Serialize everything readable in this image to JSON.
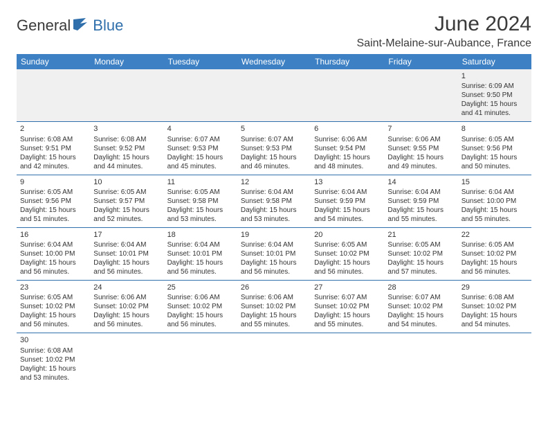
{
  "header": {
    "logo_dark": "General",
    "logo_blue": "Blue",
    "month_title": "June 2024",
    "location": "Saint-Melaine-sur-Aubance, France"
  },
  "colors": {
    "header_bg": "#3d80c3",
    "header_text": "#ffffff",
    "row_border": "#2f6fab",
    "blank_bg": "#f0f0f0",
    "logo_dark": "#3a3a3a",
    "logo_blue": "#2f6fab",
    "text": "#333333",
    "page_bg": "#ffffff"
  },
  "calendar": {
    "day_headers": [
      "Sunday",
      "Monday",
      "Tuesday",
      "Wednesday",
      "Thursday",
      "Friday",
      "Saturday"
    ],
    "weeks": [
      [
        null,
        null,
        null,
        null,
        null,
        null,
        {
          "day": "1",
          "sunrise": "Sunrise: 6:09 AM",
          "sunset": "Sunset: 9:50 PM",
          "daylight": "Daylight: 15 hours and 41 minutes."
        }
      ],
      [
        {
          "day": "2",
          "sunrise": "Sunrise: 6:08 AM",
          "sunset": "Sunset: 9:51 PM",
          "daylight": "Daylight: 15 hours and 42 minutes."
        },
        {
          "day": "3",
          "sunrise": "Sunrise: 6:08 AM",
          "sunset": "Sunset: 9:52 PM",
          "daylight": "Daylight: 15 hours and 44 minutes."
        },
        {
          "day": "4",
          "sunrise": "Sunrise: 6:07 AM",
          "sunset": "Sunset: 9:53 PM",
          "daylight": "Daylight: 15 hours and 45 minutes."
        },
        {
          "day": "5",
          "sunrise": "Sunrise: 6:07 AM",
          "sunset": "Sunset: 9:53 PM",
          "daylight": "Daylight: 15 hours and 46 minutes."
        },
        {
          "day": "6",
          "sunrise": "Sunrise: 6:06 AM",
          "sunset": "Sunset: 9:54 PM",
          "daylight": "Daylight: 15 hours and 48 minutes."
        },
        {
          "day": "7",
          "sunrise": "Sunrise: 6:06 AM",
          "sunset": "Sunset: 9:55 PM",
          "daylight": "Daylight: 15 hours and 49 minutes."
        },
        {
          "day": "8",
          "sunrise": "Sunrise: 6:05 AM",
          "sunset": "Sunset: 9:56 PM",
          "daylight": "Daylight: 15 hours and 50 minutes."
        }
      ],
      [
        {
          "day": "9",
          "sunrise": "Sunrise: 6:05 AM",
          "sunset": "Sunset: 9:56 PM",
          "daylight": "Daylight: 15 hours and 51 minutes."
        },
        {
          "day": "10",
          "sunrise": "Sunrise: 6:05 AM",
          "sunset": "Sunset: 9:57 PM",
          "daylight": "Daylight: 15 hours and 52 minutes."
        },
        {
          "day": "11",
          "sunrise": "Sunrise: 6:05 AM",
          "sunset": "Sunset: 9:58 PM",
          "daylight": "Daylight: 15 hours and 53 minutes."
        },
        {
          "day": "12",
          "sunrise": "Sunrise: 6:04 AM",
          "sunset": "Sunset: 9:58 PM",
          "daylight": "Daylight: 15 hours and 53 minutes."
        },
        {
          "day": "13",
          "sunrise": "Sunrise: 6:04 AM",
          "sunset": "Sunset: 9:59 PM",
          "daylight": "Daylight: 15 hours and 54 minutes."
        },
        {
          "day": "14",
          "sunrise": "Sunrise: 6:04 AM",
          "sunset": "Sunset: 9:59 PM",
          "daylight": "Daylight: 15 hours and 55 minutes."
        },
        {
          "day": "15",
          "sunrise": "Sunrise: 6:04 AM",
          "sunset": "Sunset: 10:00 PM",
          "daylight": "Daylight: 15 hours and 55 minutes."
        }
      ],
      [
        {
          "day": "16",
          "sunrise": "Sunrise: 6:04 AM",
          "sunset": "Sunset: 10:00 PM",
          "daylight": "Daylight: 15 hours and 56 minutes."
        },
        {
          "day": "17",
          "sunrise": "Sunrise: 6:04 AM",
          "sunset": "Sunset: 10:01 PM",
          "daylight": "Daylight: 15 hours and 56 minutes."
        },
        {
          "day": "18",
          "sunrise": "Sunrise: 6:04 AM",
          "sunset": "Sunset: 10:01 PM",
          "daylight": "Daylight: 15 hours and 56 minutes."
        },
        {
          "day": "19",
          "sunrise": "Sunrise: 6:04 AM",
          "sunset": "Sunset: 10:01 PM",
          "daylight": "Daylight: 15 hours and 56 minutes."
        },
        {
          "day": "20",
          "sunrise": "Sunrise: 6:05 AM",
          "sunset": "Sunset: 10:02 PM",
          "daylight": "Daylight: 15 hours and 56 minutes."
        },
        {
          "day": "21",
          "sunrise": "Sunrise: 6:05 AM",
          "sunset": "Sunset: 10:02 PM",
          "daylight": "Daylight: 15 hours and 57 minutes."
        },
        {
          "day": "22",
          "sunrise": "Sunrise: 6:05 AM",
          "sunset": "Sunset: 10:02 PM",
          "daylight": "Daylight: 15 hours and 56 minutes."
        }
      ],
      [
        {
          "day": "23",
          "sunrise": "Sunrise: 6:05 AM",
          "sunset": "Sunset: 10:02 PM",
          "daylight": "Daylight: 15 hours and 56 minutes."
        },
        {
          "day": "24",
          "sunrise": "Sunrise: 6:06 AM",
          "sunset": "Sunset: 10:02 PM",
          "daylight": "Daylight: 15 hours and 56 minutes."
        },
        {
          "day": "25",
          "sunrise": "Sunrise: 6:06 AM",
          "sunset": "Sunset: 10:02 PM",
          "daylight": "Daylight: 15 hours and 56 minutes."
        },
        {
          "day": "26",
          "sunrise": "Sunrise: 6:06 AM",
          "sunset": "Sunset: 10:02 PM",
          "daylight": "Daylight: 15 hours and 55 minutes."
        },
        {
          "day": "27",
          "sunrise": "Sunrise: 6:07 AM",
          "sunset": "Sunset: 10:02 PM",
          "daylight": "Daylight: 15 hours and 55 minutes."
        },
        {
          "day": "28",
          "sunrise": "Sunrise: 6:07 AM",
          "sunset": "Sunset: 10:02 PM",
          "daylight": "Daylight: 15 hours and 54 minutes."
        },
        {
          "day": "29",
          "sunrise": "Sunrise: 6:08 AM",
          "sunset": "Sunset: 10:02 PM",
          "daylight": "Daylight: 15 hours and 54 minutes."
        }
      ],
      [
        {
          "day": "30",
          "sunrise": "Sunrise: 6:08 AM",
          "sunset": "Sunset: 10:02 PM",
          "daylight": "Daylight: 15 hours and 53 minutes."
        },
        null,
        null,
        null,
        null,
        null,
        null
      ]
    ]
  }
}
